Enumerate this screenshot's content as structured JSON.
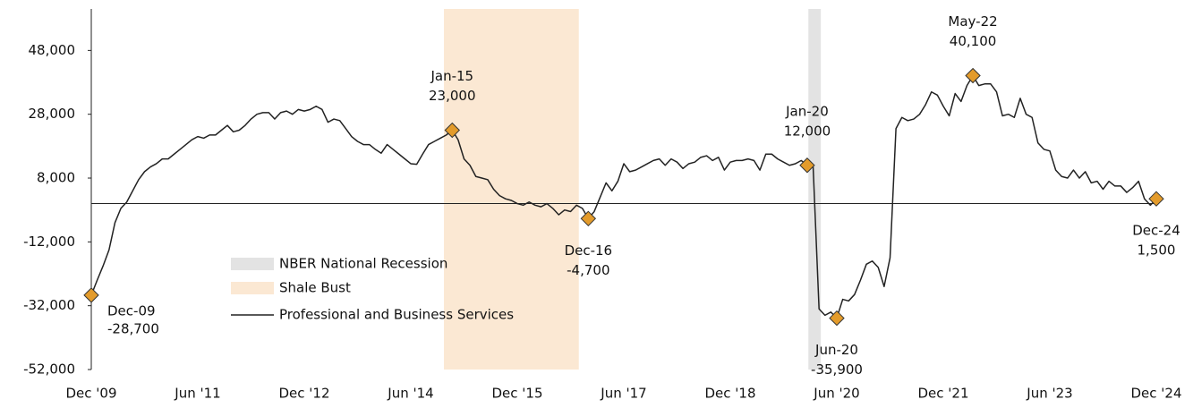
{
  "chart_data": {
    "type": "line",
    "ylim": [
      -52000,
      61000
    ],
    "yticks": [
      {
        "value": -52000,
        "label": "-52,000"
      },
      {
        "value": -32000,
        "label": "-32,000"
      },
      {
        "value": -12000,
        "label": "-12,000"
      },
      {
        "value": 8000,
        "label": "8,000"
      },
      {
        "value": 28000,
        "label": "28,000"
      },
      {
        "value": 48000,
        "label": "48,000"
      }
    ],
    "categories": [
      "Dec '09",
      null,
      null,
      null,
      null,
      null,
      null,
      null,
      null,
      null,
      null,
      null,
      null,
      null,
      null,
      null,
      null,
      null,
      "Jun '11",
      null,
      null,
      null,
      null,
      null,
      null,
      null,
      null,
      null,
      null,
      null,
      null,
      null,
      null,
      null,
      null,
      null,
      "Dec '12",
      null,
      null,
      null,
      null,
      null,
      null,
      null,
      null,
      null,
      null,
      null,
      null,
      null,
      null,
      null,
      null,
      null,
      "Jun '14",
      null,
      null,
      null,
      null,
      null,
      null,
      null,
      null,
      null,
      null,
      null,
      null,
      null,
      null,
      null,
      null,
      null,
      "Dec '15",
      null,
      null,
      null,
      null,
      null,
      null,
      null,
      null,
      null,
      null,
      null,
      null,
      null,
      null,
      null,
      null,
      null,
      "Jun '17",
      null,
      null,
      null,
      null,
      null,
      null,
      null,
      null,
      null,
      null,
      null,
      null,
      null,
      null,
      null,
      null,
      null,
      "Dec '18",
      null,
      null,
      null,
      null,
      null,
      null,
      null,
      null,
      null,
      null,
      null,
      null,
      null,
      null,
      null,
      null,
      null,
      "Jun '20",
      null,
      null,
      null,
      null,
      null,
      null,
      null,
      null,
      null,
      null,
      null,
      null,
      null,
      null,
      null,
      null,
      null,
      "Dec '21",
      null,
      null,
      null,
      null,
      null,
      null,
      null,
      null,
      null,
      null,
      null,
      null,
      null,
      null,
      null,
      null,
      null,
      "Jun '23",
      null,
      null,
      null,
      null,
      null,
      null,
      null,
      null,
      null,
      null,
      null,
      null,
      null,
      null,
      null,
      null,
      null,
      "Dec '24"
    ],
    "bands": [
      {
        "name": "NBER National Recession",
        "color": "#e3e3e3",
        "x": [
          121.2,
          123.3
        ]
      },
      {
        "name": "Shale Bust",
        "color": "#fbe8d3",
        "x": [
          59.6,
          82.4
        ]
      }
    ],
    "series": [
      {
        "name": "Professional and Business Services",
        "color": "#222222",
        "marker_color": "#e39b2b",
        "values": [
          -28700,
          -24000,
          -19500,
          -14500,
          -6000,
          -1500,
          500,
          4000,
          7500,
          10000,
          11500,
          12500,
          14000,
          14000,
          15500,
          17000,
          18500,
          20000,
          21000,
          20500,
          21500,
          21500,
          23000,
          24500,
          22500,
          23000,
          24500,
          26500,
          28000,
          28500,
          28500,
          26500,
          28500,
          29000,
          28000,
          29500,
          29000,
          29500,
          30500,
          29500,
          25500,
          26500,
          26000,
          23500,
          21000,
          19500,
          18500,
          18500,
          17000,
          15800,
          18500,
          17000,
          15500,
          14000,
          12500,
          12300,
          15500,
          18500,
          19500,
          20500,
          21500,
          23000,
          20000,
          14000,
          12000,
          8500,
          8000,
          7500,
          4500,
          2500,
          1500,
          1000,
          0,
          -500,
          500,
          -500,
          -1000,
          0,
          -1500,
          -3500,
          -2000,
          -2500,
          -500,
          -1500,
          -4700,
          -2500,
          2000,
          6500,
          4000,
          7000,
          12500,
          10000,
          10500,
          11500,
          12500,
          13500,
          14000,
          12000,
          14000,
          13000,
          11000,
          12500,
          13000,
          14500,
          15000,
          13500,
          14500,
          10500,
          13000,
          13500,
          13500,
          14000,
          13500,
          10500,
          15500,
          15500,
          14000,
          13000,
          12000,
          12500,
          13500,
          12000,
          11500,
          -33000,
          -35000,
          -34000,
          -35900,
          -30000,
          -30500,
          -28500,
          -24000,
          -19000,
          -18000,
          -20000,
          -26000,
          -17000,
          23500,
          27000,
          26000,
          26500,
          28000,
          31000,
          35000,
          34000,
          30500,
          27500,
          34500,
          32000,
          37000,
          40100,
          37000,
          37500,
          37500,
          35000,
          27500,
          28000,
          27000,
          33000,
          28000,
          27000,
          19000,
          17000,
          16500,
          10500,
          8500,
          8000,
          10500,
          8000,
          10000,
          6500,
          7000,
          4500,
          7000,
          5500,
          5500,
          3500,
          5000,
          7000,
          1500,
          -500,
          1500
        ],
        "point_labels": [
          "Dec-09",
          null,
          null,
          null,
          null,
          null,
          null,
          null,
          null,
          null,
          null,
          null,
          null,
          null,
          null,
          null,
          null,
          null,
          null,
          null,
          null,
          null,
          null,
          null,
          null,
          null,
          null,
          null,
          null,
          null,
          null,
          null,
          null,
          null,
          null,
          null,
          null,
          null,
          null,
          null,
          null,
          null,
          null,
          null,
          null,
          null,
          null,
          null,
          null,
          null,
          null,
          null,
          null,
          null,
          null,
          null,
          null,
          null,
          null,
          null,
          null,
          "Jan-15",
          null,
          null,
          null,
          null,
          null,
          null,
          null,
          null,
          null,
          null,
          null,
          null,
          null,
          null,
          null,
          null,
          null,
          null,
          null,
          null,
          null,
          null,
          "Dec-16",
          null,
          null,
          null,
          null,
          null,
          null,
          null,
          null,
          null,
          null,
          null,
          null,
          null,
          null,
          null,
          null,
          null,
          null,
          null,
          null,
          null,
          null,
          null,
          null,
          null,
          null,
          null,
          null,
          null,
          null,
          null,
          null,
          null,
          null,
          null,
          null,
          "Jan-20",
          null,
          null,
          null,
          null,
          "Jun-20",
          null,
          null,
          null,
          null,
          null,
          null,
          null,
          null,
          null,
          null,
          null,
          null,
          null,
          null,
          null,
          null,
          null,
          null,
          null,
          null,
          null,
          null,
          "May-22",
          null,
          null,
          null,
          null,
          null,
          null,
          null,
          null,
          null,
          null,
          null,
          null,
          null,
          null,
          null,
          null,
          null,
          null,
          null,
          null,
          null,
          null,
          null,
          null,
          null,
          null,
          null,
          null,
          null,
          null,
          "Dec-24"
        ],
        "value_labels": [
          "-28,700",
          null,
          null,
          null,
          null,
          null,
          null,
          null,
          null,
          null,
          null,
          null,
          null,
          null,
          null,
          null,
          null,
          null,
          null,
          null,
          null,
          null,
          null,
          null,
          null,
          null,
          null,
          null,
          null,
          null,
          null,
          null,
          null,
          null,
          null,
          null,
          null,
          null,
          null,
          null,
          null,
          null,
          null,
          null,
          null,
          null,
          null,
          null,
          null,
          null,
          null,
          null,
          null,
          null,
          null,
          null,
          null,
          null,
          null,
          null,
          null,
          "23,000",
          null,
          null,
          null,
          null,
          null,
          null,
          null,
          null,
          null,
          null,
          null,
          null,
          null,
          null,
          null,
          null,
          null,
          null,
          null,
          null,
          null,
          null,
          "-4,700",
          null,
          null,
          null,
          null,
          null,
          null,
          null,
          null,
          null,
          null,
          null,
          null,
          null,
          null,
          null,
          null,
          null,
          null,
          null,
          null,
          null,
          null,
          null,
          null,
          null,
          null,
          null,
          null,
          null,
          null,
          null,
          null,
          null,
          null,
          null,
          null,
          "12,000",
          null,
          null,
          null,
          null,
          "-35,900",
          null,
          null,
          null,
          null,
          null,
          null,
          null,
          null,
          null,
          null,
          null,
          null,
          null,
          null,
          null,
          null,
          null,
          null,
          null,
          null,
          null,
          null,
          "40,100",
          null,
          null,
          null,
          null,
          null,
          null,
          null,
          null,
          null,
          null,
          null,
          null,
          null,
          null,
          null,
          null,
          null,
          null,
          null,
          null,
          null,
          null,
          null,
          null,
          null,
          null,
          null,
          null,
          null,
          null,
          "1,500"
        ]
      }
    ]
  }
}
